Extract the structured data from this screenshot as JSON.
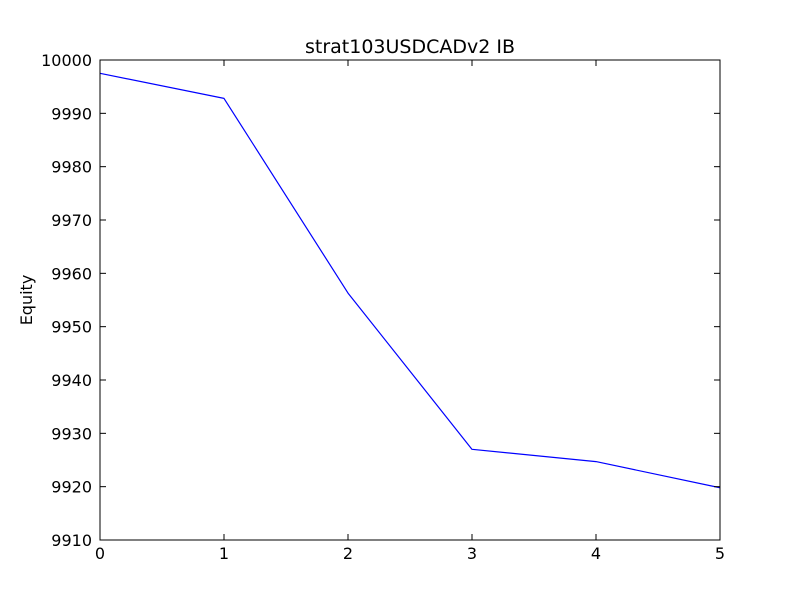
{
  "chart_data": {
    "type": "line",
    "title": "strat103USDCADv2 IB",
    "xlabel": "",
    "ylabel": "Equity",
    "xlim": [
      0,
      5
    ],
    "ylim": [
      9910,
      10000
    ],
    "x_ticks": [
      0,
      1,
      2,
      3,
      4,
      5
    ],
    "y_ticks": [
      9910,
      9920,
      9930,
      9940,
      9950,
      9960,
      9970,
      9980,
      9990,
      10000
    ],
    "grid": false,
    "series": [
      {
        "color": "#0000ff",
        "x": [
          0,
          1,
          2,
          3,
          4,
          5
        ],
        "y": [
          9997.5,
          9992.8,
          9956.3,
          9927.0,
          9924.7,
          9919.8
        ]
      }
    ]
  }
}
